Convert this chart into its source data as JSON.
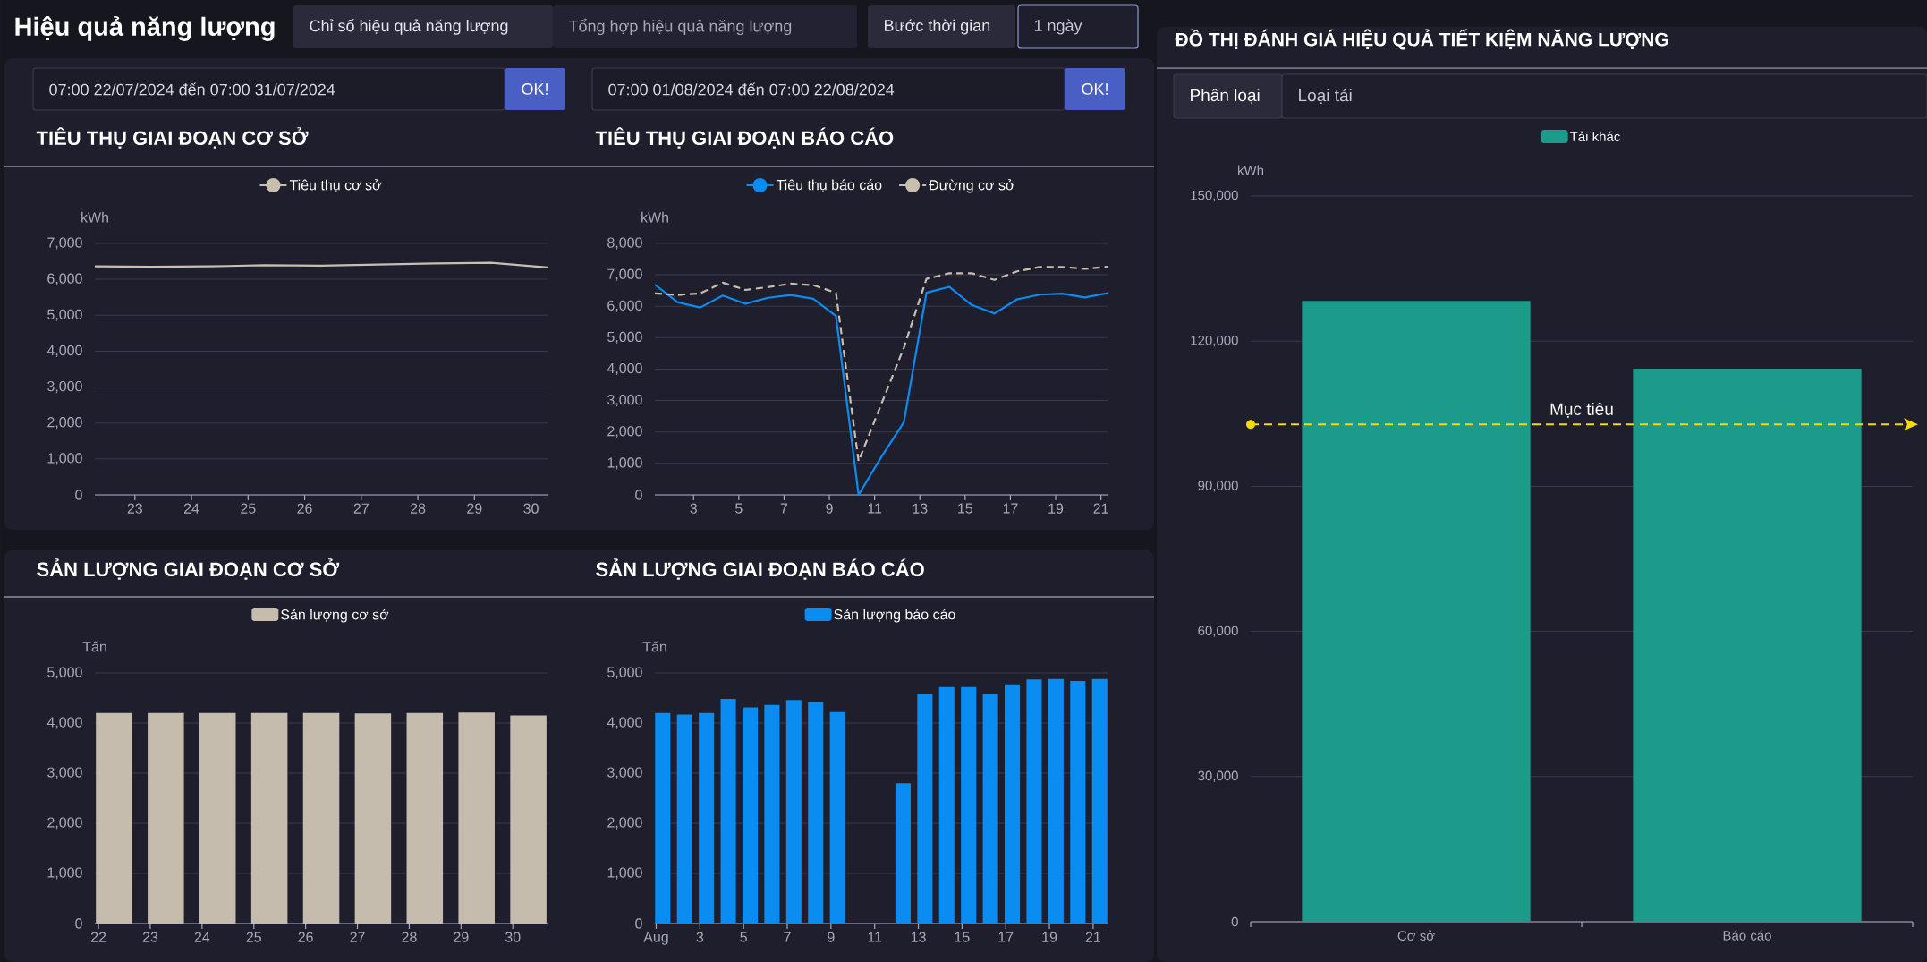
{
  "chart_data": [
    {
      "type": "other",
      "title": "Hiệu quả năng lượng",
      "annotations": [
        "Chỉ số hiệu quả năng lượng",
        "Tổng hợp hiệu quả năng lượng",
        "Bước thời gian",
        "1 ngày",
        "07:00 22/07/2024 đến 07:00 31/07/2024",
        "OK!",
        "07:00 01/08/2024 đến 07:00 22/08/2024",
        "OK!"
      ]
    },
    {
      "type": "line",
      "title": "TIÊU THỤ GIAI ĐOẠN CƠ SỞ",
      "ylabel": "kWh",
      "x": [
        "2024-07-22T07:00",
        "2024-07-23T07:00",
        "2024-07-24T07:00",
        "2024-07-25T07:00",
        "2024-07-26T07:00",
        "2024-07-27T07:00",
        "2024-07-28T07:00",
        "2024-07-29T07:00",
        "2024-07-30T07:00"
      ],
      "series": [
        {
          "name": "Tiêu thụ cơ sở",
          "color": "#c8bfae",
          "values": [
            6360,
            6350,
            6360,
            6390,
            6380,
            6410,
            6440,
            6460,
            6330
          ]
        }
      ],
      "xlim": [
        "2024-07-22T07:00",
        "2024-07-30T07:00"
      ],
      "xticks": [
        {
          "value": "2024-07-23",
          "label": "23"
        },
        {
          "value": "2024-07-24",
          "label": "24"
        },
        {
          "value": "2024-07-25",
          "label": "25"
        },
        {
          "value": "2024-07-26",
          "label": "26"
        },
        {
          "value": "2024-07-27",
          "label": "27"
        },
        {
          "value": "2024-07-28",
          "label": "28"
        },
        {
          "value": "2024-07-29",
          "label": "29"
        },
        {
          "value": "2024-07-30",
          "label": "30"
        }
      ],
      "ylim": [
        0,
        7000
      ],
      "yticks": [
        0,
        {
          "value": 1000,
          "label": "1,000"
        },
        {
          "value": 2000,
          "label": "2,000"
        },
        {
          "value": 3000,
          "label": "3,000"
        },
        {
          "value": 4000,
          "label": "4,000"
        },
        {
          "value": 5000,
          "label": "5,000"
        },
        {
          "value": 6000,
          "label": "6,000"
        },
        {
          "value": 7000,
          "label": "7,000"
        }
      ],
      "grid": "y",
      "legend": "top"
    },
    {
      "type": "line",
      "title": "TIÊU THỤ GIAI ĐOẠN BÁO CÁO",
      "ylabel": "kWh",
      "x": [
        "2024-08-01T07:00",
        "2024-08-02T07:00",
        "2024-08-03T07:00",
        "2024-08-04T07:00",
        "2024-08-05T07:00",
        "2024-08-06T07:00",
        "2024-08-07T07:00",
        "2024-08-08T07:00",
        "2024-08-09T07:00",
        "2024-08-10T07:00",
        "2024-08-11T07:00",
        "2024-08-12T07:00",
        "2024-08-13T07:00",
        "2024-08-14T07:00",
        "2024-08-15T07:00",
        "2024-08-16T07:00",
        "2024-08-17T07:00",
        "2024-08-18T07:00",
        "2024-08-19T07:00",
        "2024-08-20T07:00",
        "2024-08-21T07:00"
      ],
      "series": [
        {
          "name": "Tiêu thụ báo cáo",
          "color": "#0a8cf0",
          "values": [
            6690,
            6130,
            5960,
            6340,
            6080,
            6270,
            6360,
            6240,
            5690,
            0,
            1200,
            2310,
            6430,
            6620,
            6040,
            5770,
            6220,
            6370,
            6400,
            6280,
            6420
          ]
        },
        {
          "name": "Đường cơ sở",
          "color": "#c8bfae",
          "line_style": "dashed",
          "values": [
            6410,
            6360,
            6410,
            6750,
            6520,
            6610,
            6720,
            6670,
            6430,
            1070,
            2880,
            4680,
            6870,
            7050,
            7050,
            6840,
            7110,
            7250,
            7250,
            7190,
            7260
          ]
        }
      ],
      "xlim": [
        "2024-08-01T07:00",
        "2024-08-21T07:00"
      ],
      "xticks": [
        {
          "value": "2024-08-03",
          "label": "3"
        },
        {
          "value": "2024-08-05",
          "label": "5"
        },
        {
          "value": "2024-08-07",
          "label": "7"
        },
        {
          "value": "2024-08-09",
          "label": "9"
        },
        {
          "value": "2024-08-11",
          "label": "11"
        },
        {
          "value": "2024-08-13",
          "label": "13"
        },
        {
          "value": "2024-08-15",
          "label": "15"
        },
        {
          "value": "2024-08-17",
          "label": "17"
        },
        {
          "value": "2024-08-19",
          "label": "19"
        },
        {
          "value": "2024-08-21",
          "label": "21"
        }
      ],
      "ylim": [
        0,
        8000
      ],
      "yticks": [
        0,
        {
          "value": 1000,
          "label": "1,000"
        },
        {
          "value": 2000,
          "label": "2,000"
        },
        {
          "value": 3000,
          "label": "3,000"
        },
        {
          "value": 4000,
          "label": "4,000"
        },
        {
          "value": 5000,
          "label": "5,000"
        },
        {
          "value": 6000,
          "label": "6,000"
        },
        {
          "value": 7000,
          "label": "7,000"
        },
        {
          "value": 8000,
          "label": "8,000"
        }
      ],
      "grid": "y",
      "legend": "top"
    },
    {
      "type": "bar",
      "title": "SẢN LƯỢNG GIAI ĐOẠN CƠ SỞ",
      "ylabel": "Tấn",
      "categories": [
        "22",
        "23",
        "24",
        "25",
        "26",
        "27",
        "28",
        "29",
        "30"
      ],
      "series": [
        {
          "name": "Sản lượng cơ sở",
          "color": "#c5bcad",
          "values": [
            4200,
            4200,
            4200,
            4200,
            4200,
            4190,
            4200,
            4210,
            4150
          ]
        }
      ],
      "ylim": [
        0,
        5000
      ],
      "yticks": [
        0,
        {
          "value": 1000,
          "label": "1,000"
        },
        {
          "value": 2000,
          "label": "2,000"
        },
        {
          "value": 3000,
          "label": "3,000"
        },
        {
          "value": 4000,
          "label": "4,000"
        },
        {
          "value": 5000,
          "label": "5,000"
        }
      ],
      "grid": "y",
      "legend": "top"
    },
    {
      "type": "bar",
      "title": "SẢN LƯỢNG GIAI ĐOẠN BÁO CÁO",
      "ylabel": "Tấn",
      "categories": [
        "Aug",
        null,
        "3",
        null,
        "5",
        null,
        "7",
        null,
        "9",
        null,
        "11",
        null,
        "13",
        null,
        "15",
        null,
        "17",
        null,
        "19",
        null,
        "21"
      ],
      "series": [
        {
          "name": "Sản lượng báo cáo",
          "color": "#0a8cf0",
          "values": [
            4200,
            4170,
            4200,
            4480,
            4310,
            4360,
            4460,
            4420,
            4220,
            null,
            null,
            2800,
            4570,
            4720,
            4720,
            4570,
            4770,
            4870,
            4880,
            4840,
            4880
          ]
        }
      ],
      "ylim": [
        0,
        5000
      ],
      "yticks": [
        0,
        {
          "value": 1000,
          "label": "1,000"
        },
        {
          "value": 2000,
          "label": "2,000"
        },
        {
          "value": 3000,
          "label": "3,000"
        },
        {
          "value": 4000,
          "label": "4,000"
        },
        {
          "value": 5000,
          "label": "5,000"
        }
      ],
      "grid": "y",
      "legend": "top"
    },
    {
      "type": "bar",
      "title": "ĐỒ THỊ ĐÁNH GIÁ HIỆU QUẢ TIẾT KIỆM NĂNG LƯỢNG",
      "ylabel": "kWh",
      "categories": [
        "Cơ sở",
        "Báo cáo"
      ],
      "series": [
        {
          "name": "Tải khác",
          "color": "#1c9a8a",
          "values": [
            128300,
            114300
          ]
        }
      ],
      "ylim": [
        0,
        150000
      ],
      "yticks": [
        0,
        {
          "value": 30000,
          "label": "30,000"
        },
        {
          "value": 60000,
          "label": "60,000"
        },
        {
          "value": 90000,
          "label": "90,000"
        },
        {
          "value": 120000,
          "label": "120,000"
        },
        {
          "value": 150000,
          "label": "150,000"
        }
      ],
      "ref_lines": [
        {
          "axis": "y",
          "value": 102800,
          "label": "Mục tiêu",
          "color": "#f5d90a",
          "line_style": "dashed"
        }
      ],
      "annotations": [
        "Phân loại",
        "Loại tải"
      ],
      "grid": "y",
      "legend": "top"
    }
  ]
}
